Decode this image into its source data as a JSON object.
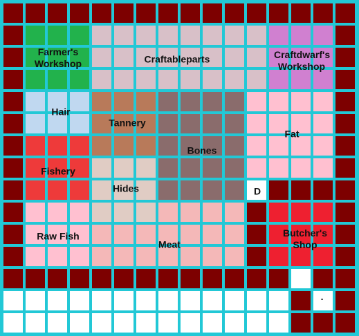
{
  "zones": [
    {
      "label": "Farmer's Workshop"
    },
    {
      "label": "Craftableparts"
    },
    {
      "label": "Craftdwarf's Workshop"
    },
    {
      "label": "Hair"
    },
    {
      "label": "Tannery"
    },
    {
      "label": "Bones"
    },
    {
      "label": "Fat"
    },
    {
      "label": "Fishery"
    },
    {
      "label": "Hides"
    },
    {
      "label": "D"
    },
    {
      "label": "Raw Fish"
    },
    {
      "label": "Meat"
    },
    {
      "label": "Butcher's Shop"
    },
    {
      "label": "·"
    }
  ]
}
